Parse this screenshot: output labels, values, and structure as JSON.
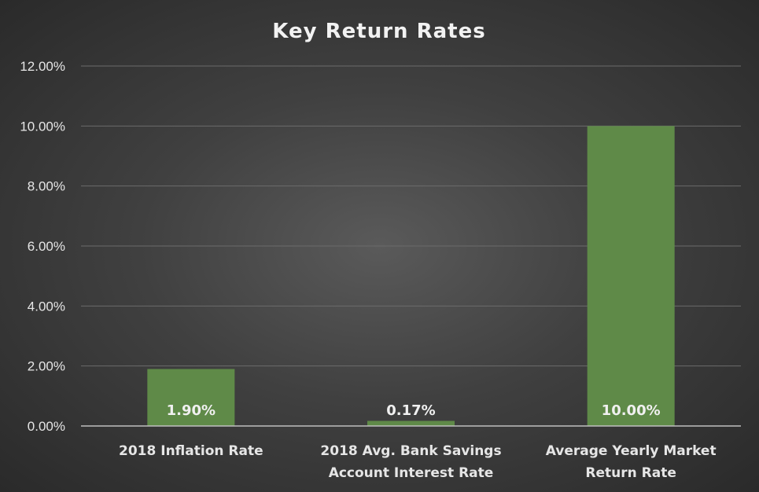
{
  "chart_data": {
    "type": "bar",
    "title": "Key Return Rates",
    "xlabel": "",
    "ylabel": "",
    "ylim": [
      0,
      12
    ],
    "yticks": [
      0,
      2,
      4,
      6,
      8,
      10,
      12
    ],
    "ytick_labels": [
      "0.00%",
      "2.00%",
      "4.00%",
      "6.00%",
      "8.00%",
      "10.00%",
      "12.00%"
    ],
    "categories": [
      [
        "2018 Inflation Rate"
      ],
      [
        "2018 Avg. Bank Savings",
        "Account Interest Rate"
      ],
      [
        "Average Yearly Market",
        "Return Rate"
      ]
    ],
    "values": [
      1.9,
      0.17,
      10.0
    ],
    "data_labels": [
      "1.90%",
      "0.17%",
      "10.00%"
    ],
    "grid": true,
    "legend": "none",
    "bar_color": "#5f8a48"
  }
}
